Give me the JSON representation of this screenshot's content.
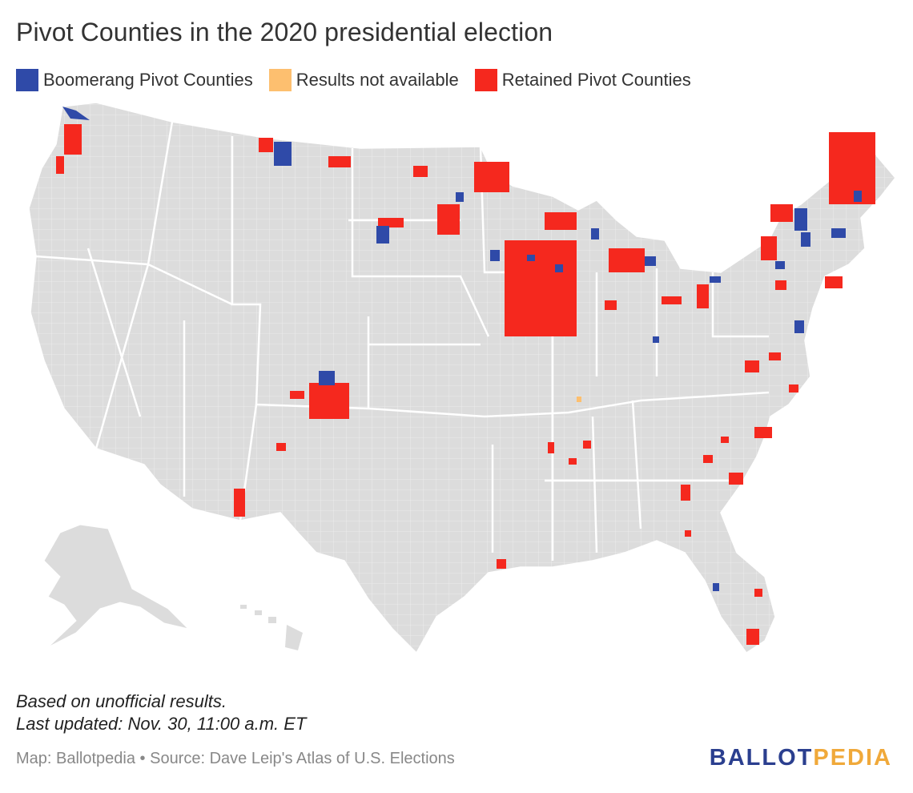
{
  "title": "Pivot Counties in the 2020 presidential election",
  "legend": [
    {
      "label": "Boomerang Pivot Counties",
      "color": "#2f4aa8"
    },
    {
      "label": "Results not available",
      "color": "#fdbf6f"
    },
    {
      "label": "Retained Pivot Counties",
      "color": "#f5281e"
    }
  ],
  "colors": {
    "land": "#dcdcdc",
    "borders": "#ffffff"
  },
  "notes": {
    "line1": "Based on unofficial results.",
    "line2": "Last updated: Nov. 30, 11:00 a.m. ET"
  },
  "source": "Map: Ballotpedia • Source: Dave Leip's Atlas of U.S. Elections",
  "logo": {
    "part1": "BALLOT",
    "part2": "PEDIA"
  }
}
